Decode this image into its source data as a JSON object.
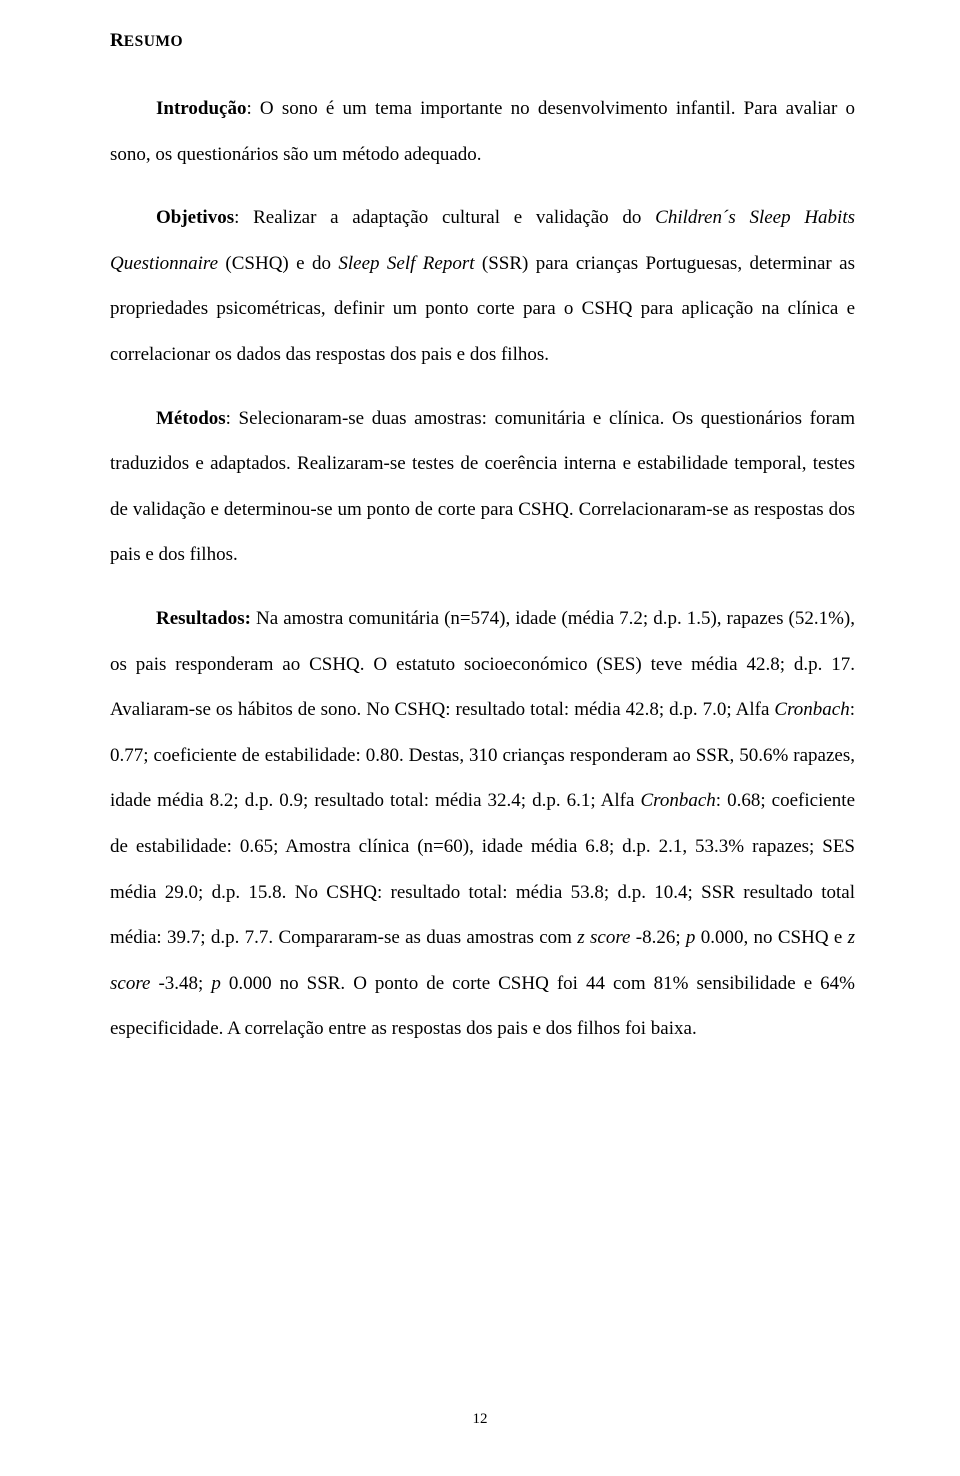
{
  "heading": {
    "first": "R",
    "rest": "ESUMO"
  },
  "p1": {
    "label": "Introdução",
    "text": ": O sono é um tema importante no desenvolvimento infantil. Para avaliar o sono, os questionários são um método adequado."
  },
  "p2": {
    "label": "Objetivos",
    "seg1": ": Realizar a adaptação cultural e validação do ",
    "it1": "Children´s Sleep Habits Questionnaire",
    "seg2": " (CSHQ) e do ",
    "it2": "Sleep Self Report",
    "seg3": " (SSR) para crianças Portuguesas, determinar as propriedades psicométricas, definir um ponto corte para o CSHQ para aplicação na clínica e correlacionar os dados das respostas dos pais e dos filhos."
  },
  "p3": {
    "label": "Métodos",
    "text": ": Selecionaram-se duas amostras: comunitária e clínica. Os questionários foram traduzidos e adaptados. Realizaram-se testes de coerência interna e estabilidade temporal, testes de validação e determinou-se um ponto de corte para CSHQ. Correlacionaram-se as respostas dos pais e dos filhos."
  },
  "p4": {
    "label": "Resultados:",
    "seg1": " Na amostra comunitária (n=574), idade (média 7.2; d.p. 1.5), rapazes (52.1%), os pais responderam ao CSHQ. O estatuto socioeconómico (SES) teve média 42.8; d.p. 17. Avaliaram-se os hábitos de sono. No CSHQ: resultado total: média 42.8; d.p. 7.0; Alfa ",
    "it1": "Cronbach",
    "seg2": ": 0.77; coeficiente de estabilidade: 0.80. Destas, 310 crianças responderam ao SSR, 50.6% rapazes, idade média 8.2; d.p. 0.9; resultado total: média 32.4; d.p. 6.1; Alfa ",
    "it2": "Cronbach",
    "seg3": ": 0.68; coeficiente de estabilidade: 0.65; Amostra clínica (n=60), idade média 6.8; d.p. 2.1, 53.3% rapazes; SES média 29.0; d.p. 15.8. No CSHQ: resultado total: média 53.8; d.p. 10.4; SSR resultado total média: 39.7; d.p. 7.7. Compararam-se as duas amostras com ",
    "it3": "z score",
    "seg4": " -8.26; ",
    "it4": "p",
    "seg5": " 0.000, no CSHQ e ",
    "it5": "z score",
    "seg6": " -3.48; ",
    "it6": "p",
    "seg7": " 0.000 no SSR. O ponto de corte CSHQ foi 44 com 81% sensibilidade e 64% especificidade. A correlação entre as respostas dos pais e dos filhos foi baixa."
  },
  "pageNumber": "12"
}
